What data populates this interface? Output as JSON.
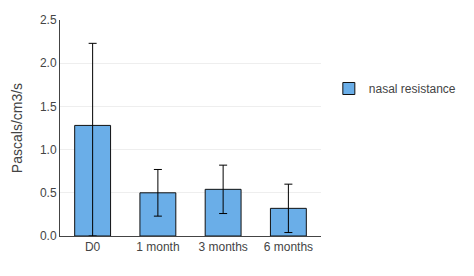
{
  "chart_data": {
    "type": "bar",
    "categories": [
      "D0",
      "1 month",
      "3 months",
      "6 months"
    ],
    "series": [
      {
        "name": "nasal resistance",
        "color": "#6aaee8",
        "values": [
          1.28,
          0.5,
          0.54,
          0.32
        ],
        "error_upper": [
          0.95,
          0.27,
          0.28,
          0.28
        ],
        "error_lower": [
          1.28,
          0.27,
          0.28,
          0.28
        ]
      }
    ],
    "ylabel": "Pascals/cm3/s",
    "ylim": [
      0,
      2.5
    ],
    "yticks": [
      {
        "value": 0,
        "label": "0.0"
      },
      0.5,
      {
        "value": 1.0,
        "label": "1.0"
      },
      1.5,
      {
        "value": 2.0,
        "label": "2.0"
      },
      2.5
    ],
    "grid": true,
    "legend": "right"
  }
}
